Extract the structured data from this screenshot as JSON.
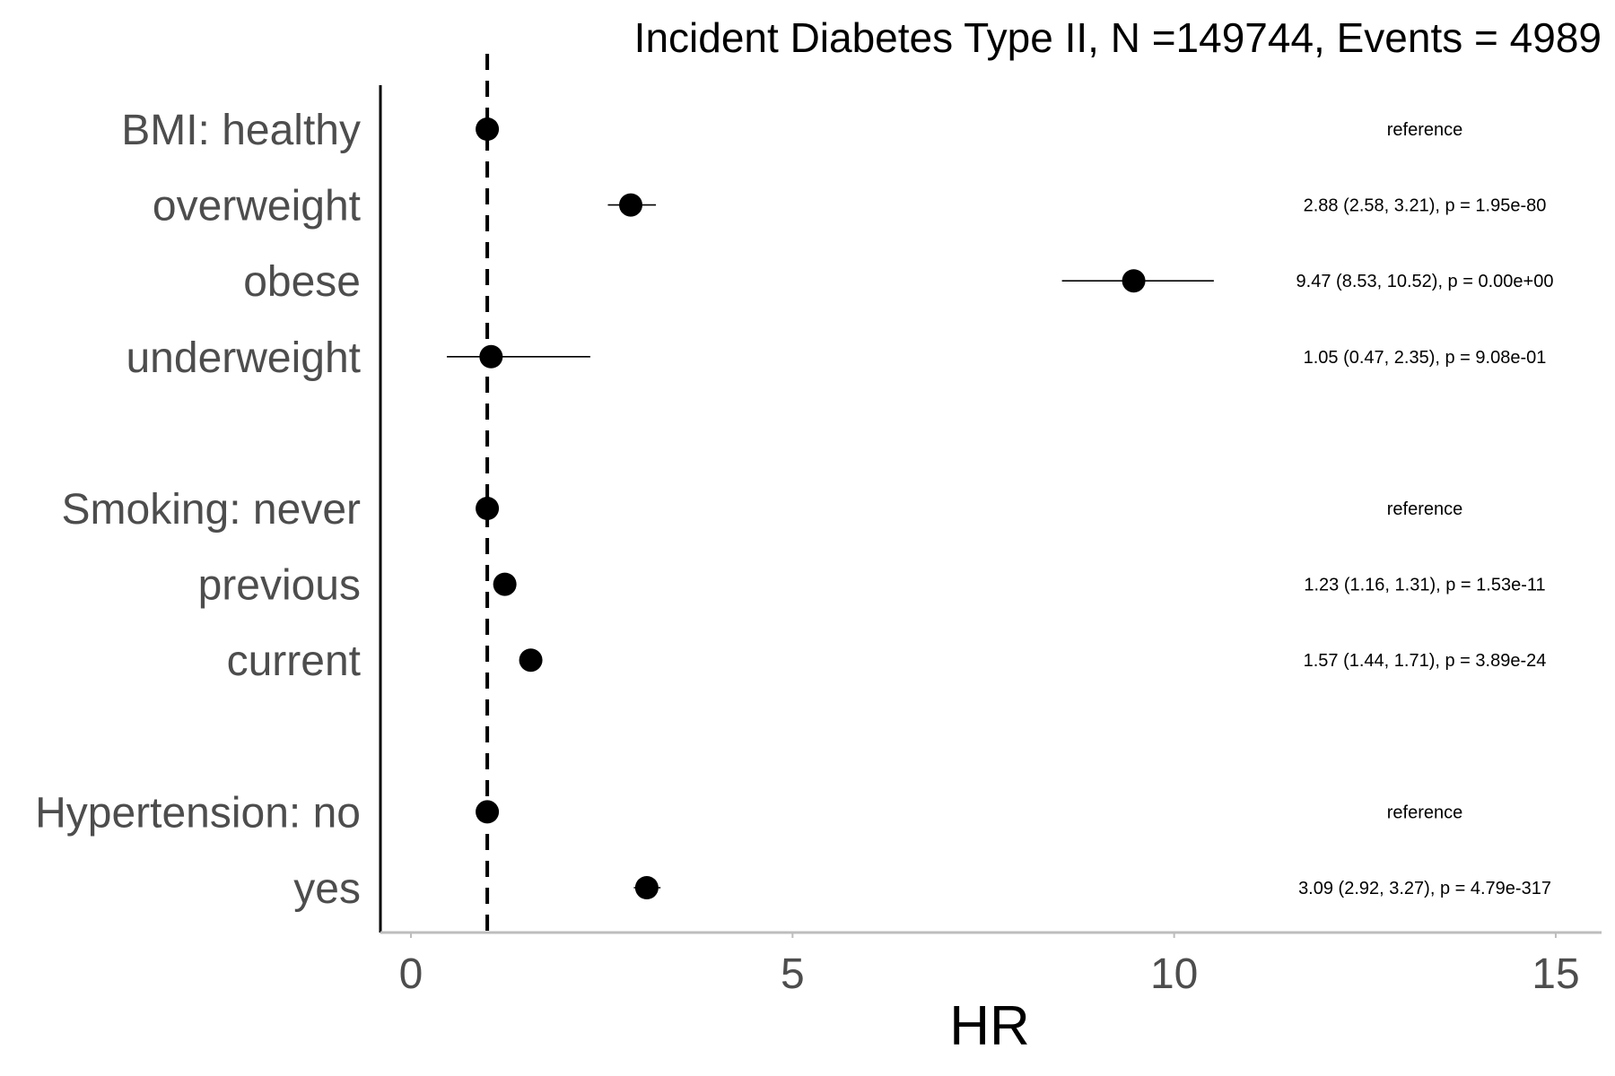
{
  "chart_data": {
    "type": "forest",
    "title": "Incident Diabetes Type II, N =149744, Events = 4989",
    "xlabel": "HR",
    "xlim": [
      -0.4,
      15.6
    ],
    "xticks": [
      0,
      5,
      10,
      15
    ],
    "xtick_labels": [
      "0",
      "5",
      "10",
      "15"
    ],
    "reference_line": 1,
    "grid": false,
    "rows": [
      {
        "label": "BMI: healthy",
        "hr": 1,
        "lower": null,
        "upper": null,
        "annotation": "reference"
      },
      {
        "label": "overweight",
        "hr": 2.88,
        "lower": 2.58,
        "upper": 3.21,
        "annotation": "2.88 (2.58, 3.21), p = 1.95e-80"
      },
      {
        "label": "obese",
        "hr": 9.47,
        "lower": 8.53,
        "upper": 10.52,
        "annotation": "9.47 (8.53, 10.52), p = 0.00e+00"
      },
      {
        "label": "underweight",
        "hr": 1.05,
        "lower": 0.47,
        "upper": 2.35,
        "annotation": "1.05 (0.47, 2.35), p = 9.08e-01"
      },
      {
        "label": "",
        "hr": null,
        "lower": null,
        "upper": null,
        "annotation": ""
      },
      {
        "label": "Smoking: never",
        "hr": 1,
        "lower": null,
        "upper": null,
        "annotation": "reference"
      },
      {
        "label": "previous",
        "hr": 1.23,
        "lower": 1.16,
        "upper": 1.31,
        "annotation": "1.23 (1.16, 1.31), p = 1.53e-11"
      },
      {
        "label": "current",
        "hr": 1.57,
        "lower": 1.44,
        "upper": 1.71,
        "annotation": "1.57 (1.44, 1.71), p = 3.89e-24"
      },
      {
        "label": "",
        "hr": null,
        "lower": null,
        "upper": null,
        "annotation": ""
      },
      {
        "label": "Hypertension: no",
        "hr": 1,
        "lower": null,
        "upper": null,
        "annotation": "reference"
      },
      {
        "label": "yes",
        "hr": 3.09,
        "lower": 2.92,
        "upper": 3.27,
        "annotation": "3.09 (2.92, 3.27), p = 4.79e-317"
      }
    ]
  },
  "colors": {
    "point": "#000000",
    "ci_line": "#000000",
    "reference_line": "#000000",
    "y_axis": "#000000",
    "x_axis": "#bdbdbd",
    "label_text": "#4d4d4d"
  }
}
